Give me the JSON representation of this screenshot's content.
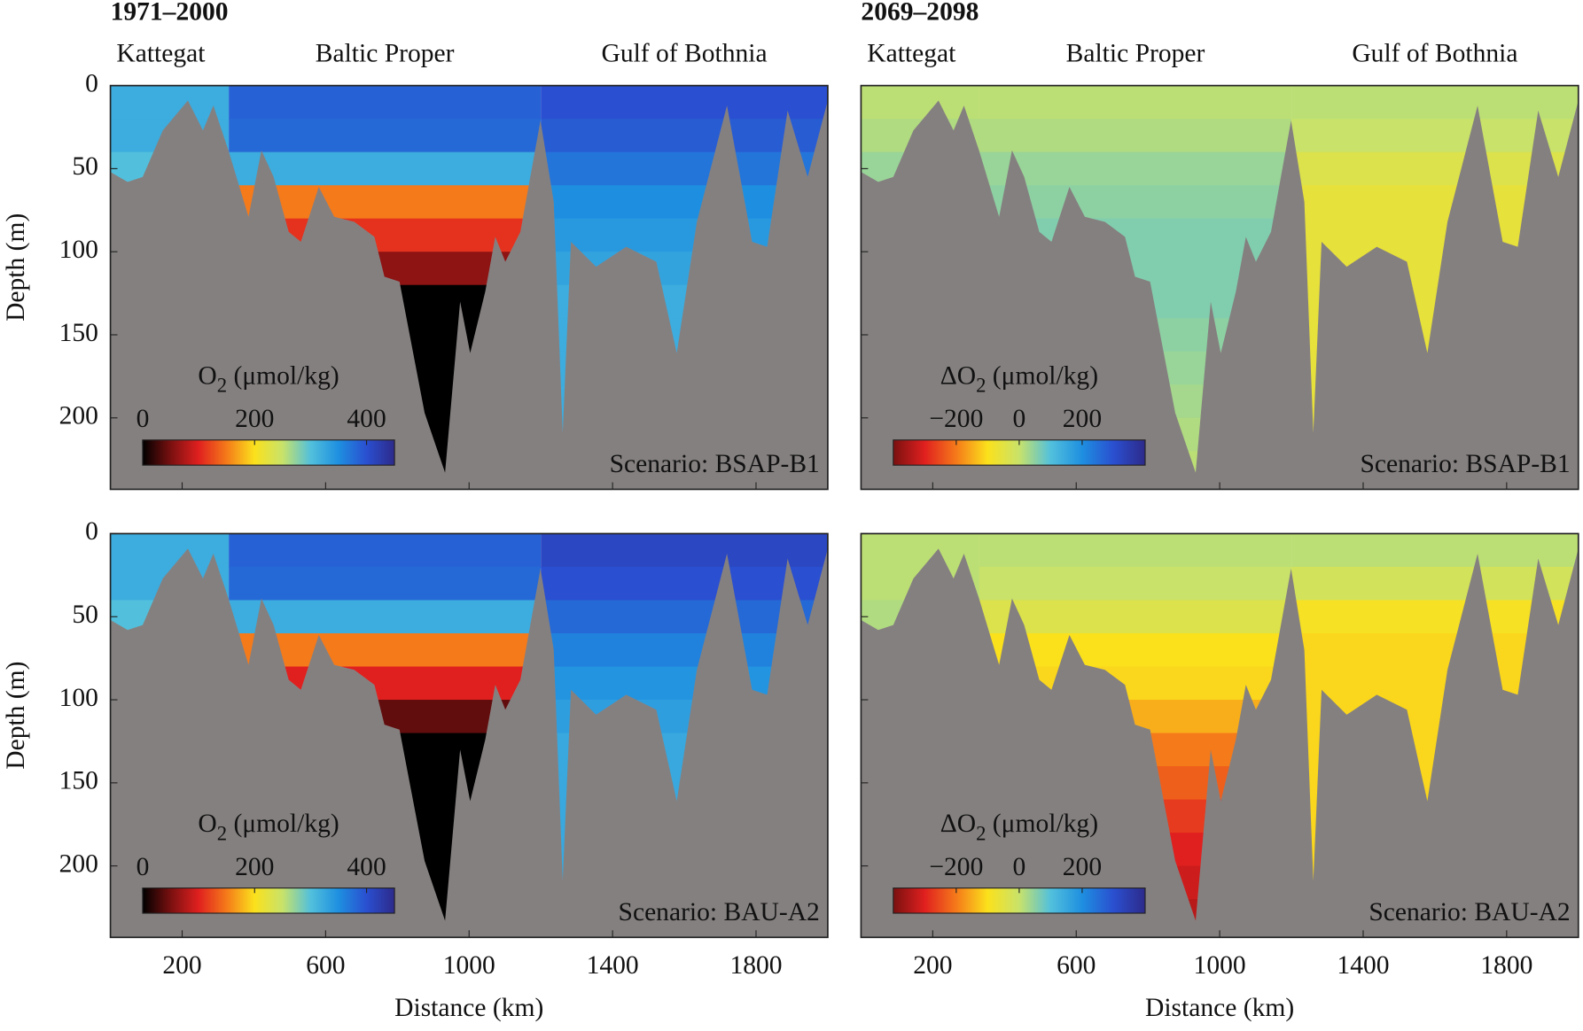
{
  "chart_data": {
    "type": "depth-section",
    "x_label": "Distance (km)",
    "y_label": "Depth (m)",
    "xlim": [
      0,
      2000
    ],
    "xticks": [
      200,
      600,
      1000,
      1400,
      1800
    ],
    "ylim": [
      0,
      243
    ],
    "yticks": [
      0,
      50,
      100,
      150,
      200
    ],
    "basins": [
      {
        "name": "Kattegat",
        "x": [
          0,
          330
        ]
      },
      {
        "name": "Baltic Proper",
        "x": [
          330,
          1200
        ]
      },
      {
        "name": "Gulf of Bothnia",
        "x": [
          1200,
          2000
        ]
      }
    ],
    "depth_levels": [
      0,
      20,
      40,
      60,
      80,
      100,
      120,
      140,
      160,
      180,
      200,
      220,
      240
    ],
    "bathymetry_color": "#858080",
    "bathymetry": {
      "distance": [
        0,
        48,
        90,
        146,
        216,
        258,
        287,
        329,
        385,
        421,
        455,
        497,
        531,
        581,
        624,
        680,
        736,
        764,
        806,
        876,
        933,
        975,
        1003,
        1045,
        1073,
        1101,
        1143,
        1199,
        1236,
        1261,
        1284,
        1354,
        1438,
        1522,
        1579,
        1635,
        1719,
        1789,
        1831,
        1888,
        1944,
        2000
      ],
      "depth": [
        52,
        58,
        55,
        27,
        9,
        27,
        12,
        39,
        79,
        39,
        55,
        88,
        94,
        61,
        79,
        82,
        91,
        115,
        118,
        197,
        233,
        130,
        161,
        124,
        91,
        106,
        88,
        21,
        70,
        209,
        94,
        109,
        97,
        106,
        161,
        82,
        12,
        94,
        97,
        15,
        55,
        9
      ]
    },
    "columns": [
      {
        "title": "1971–2000",
        "colorbar": {
          "label": "O",
          "label_sub": "2",
          "label_rest": " (μmol/kg)",
          "clim": [
            0,
            450
          ],
          "ticks": [
            0,
            200,
            400
          ],
          "colormap": [
            "#000000",
            "#7a1010",
            "#e0201f",
            "#f57a1a",
            "#fbe11c",
            "#c8e26a",
            "#52c0dc",
            "#1e8fe0",
            "#2a4fd0",
            "#2d2a8a"
          ]
        },
        "panels": [
          {
            "scenario": "Scenario: BSAP-B1",
            "fields": [
              [
                320,
                320,
                300,
                280,
                270,
                260,
                250,
                250,
                250,
                250,
                250,
                250,
                250
              ],
              [
                385,
                380,
                320,
                150,
                110,
                60,
                0,
                0,
                0,
                0,
                0,
                0,
                0
              ],
              [
                400,
                390,
                370,
                350,
                340,
                330,
                320,
                320,
                320,
                320,
                320,
                320,
                320
              ]
            ]
          },
          {
            "scenario": "Scenario: BAU-A2",
            "fields": [
              [
                320,
                320,
                300,
                280,
                270,
                260,
                250,
                250,
                250,
                250,
                250,
                250,
                250
              ],
              [
                385,
                380,
                320,
                150,
                100,
                40,
                0,
                0,
                0,
                0,
                0,
                0,
                0
              ],
              [
                410,
                400,
                380,
                360,
                345,
                335,
                325,
                325,
                325,
                325,
                325,
                325,
                325
              ]
            ]
          }
        ]
      },
      {
        "title": "2069–2098",
        "colorbar": {
          "label": "ΔO",
          "label_sub": "2",
          "label_rest": " (μmol/kg)",
          "clim": [
            -400,
            400
          ],
          "ticks": [
            {
              "value": -200,
              "label": "−200"
            },
            0,
            200
          ],
          "colormap": [
            "#7a1010",
            "#e0201f",
            "#f57a1a",
            "#fbe11c",
            "#c8e26a",
            "#52c0dc",
            "#1e8fe0",
            "#2a4fd0",
            "#2d2a8a"
          ]
        },
        "panels": [
          {
            "scenario": "Scenario: BSAP-B1",
            "fields": [
              [
                10,
                20,
                40,
                50,
                50,
                50,
                50,
                50,
                50,
                50,
                50,
                50,
                50
              ],
              [
                10,
                20,
                40,
                50,
                60,
                60,
                60,
                50,
                40,
                30,
                20,
                10,
                10
              ],
              [
                10,
                0,
                -40,
                -60,
                -60,
                -60,
                -60,
                -60,
                -60,
                -60,
                -60,
                -60,
                -60
              ]
            ]
          },
          {
            "scenario": "Scenario: BAU-A2",
            "fields": [
              [
                10,
                10,
                20,
                20,
                20,
                20,
                20,
                20,
                20,
                20,
                20,
                20,
                20
              ],
              [
                10,
                0,
                -40,
                -100,
                -110,
                -150,
                -200,
                -230,
                -270,
                -300,
                -320,
                -340,
                -350
              ],
              [
                10,
                -20,
                -90,
                -110,
                -110,
                -110,
                -110,
                -110,
                -110,
                -110,
                -110,
                -110,
                -110
              ]
            ]
          }
        ]
      }
    ]
  }
}
